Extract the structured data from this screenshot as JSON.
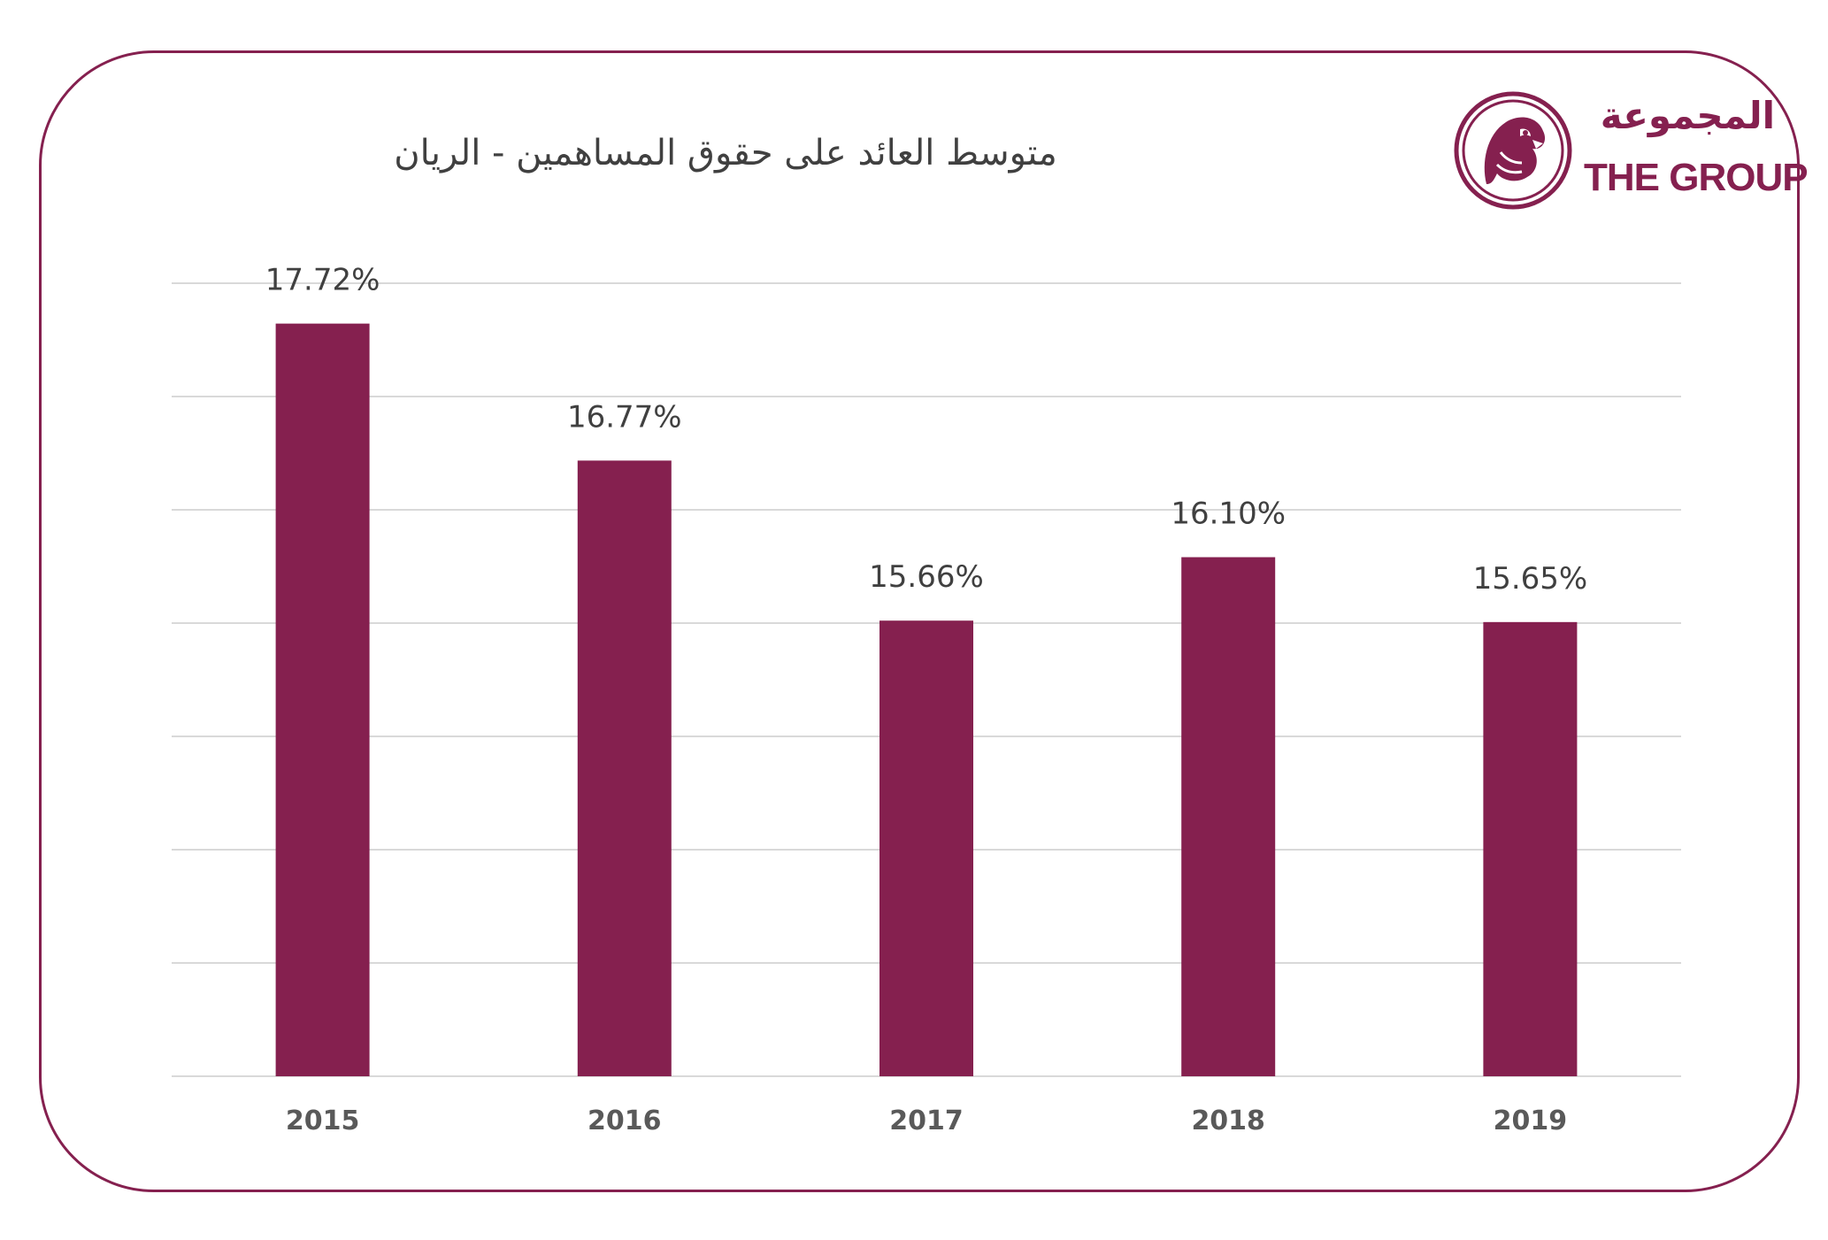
{
  "logo": {
    "arabic_text": "المجموعة",
    "english_text": "THE GROUP"
  },
  "colors": {
    "accent": "#85204f",
    "grid": "#d9d9d9",
    "text": "#404040"
  },
  "chart_data": {
    "type": "bar",
    "title": "متوسط العائد على حقوق المساهمين - الريان",
    "xlabel": "",
    "ylabel": "",
    "categories": [
      "2015",
      "2016",
      "2017",
      "2018",
      "2019"
    ],
    "values": [
      17.72,
      16.77,
      15.66,
      16.1,
      15.65
    ],
    "value_labels": [
      "17.72%",
      "16.77%",
      "15.66%",
      "16.10%",
      "15.65%"
    ],
    "ylim": [
      12.5,
      18.0
    ],
    "grid": true,
    "legend": "none"
  }
}
